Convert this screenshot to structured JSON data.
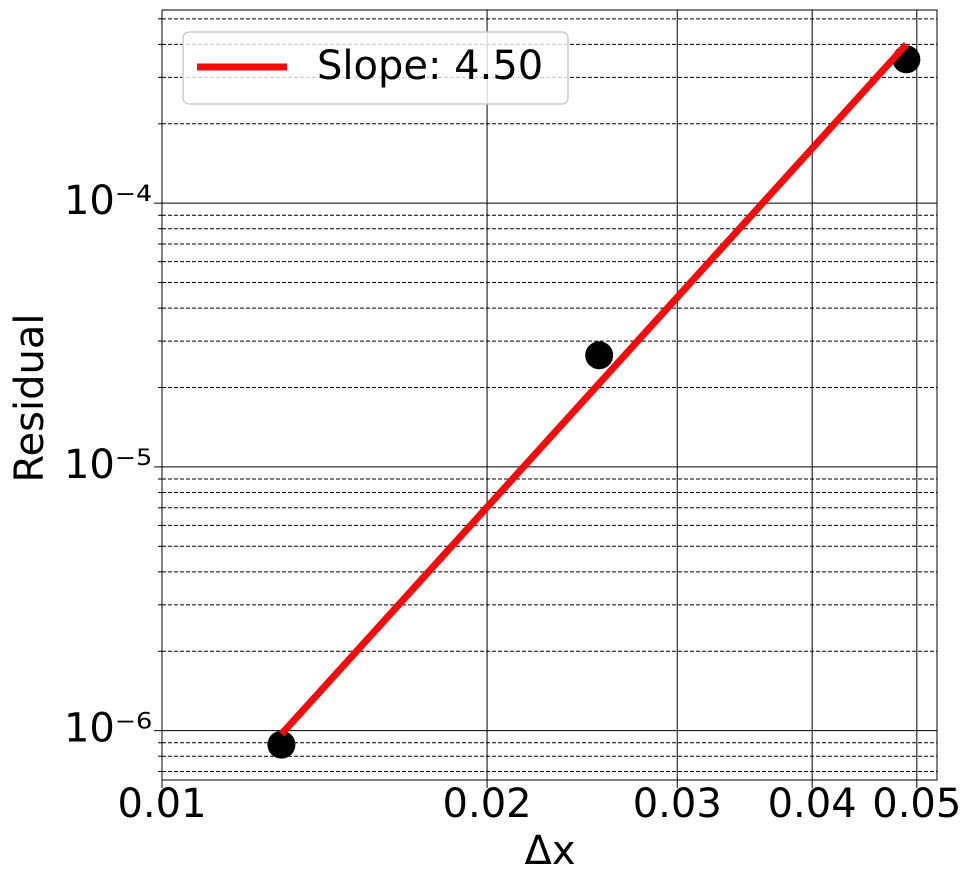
{
  "chart_data": {
    "type": "scatter",
    "x_label": "Δx",
    "y_label": "Residual",
    "xscale": "log",
    "yscale": "log",
    "grid": true,
    "legend": "upper left",
    "xlim": [
      0.01,
      0.0522
    ],
    "ylim": [
      6.5e-07,
      0.00054
    ],
    "xticks": [
      0.01,
      0.02,
      0.03,
      0.04,
      0.05
    ],
    "yticks": [
      {
        "value": 1e-06,
        "label": "10⁻⁶"
      },
      {
        "value": 1e-05,
        "label": "10⁻⁵"
      },
      {
        "value": 0.0001,
        "label": "10⁻⁴"
      }
    ],
    "yminorticks": [
      7e-07,
      8e-07,
      9e-07,
      2e-06,
      3e-06,
      4e-06,
      5e-06,
      6e-06,
      7e-06,
      8e-06,
      9e-06,
      2e-05,
      3e-05,
      4e-05,
      5e-05,
      6e-05,
      7e-05,
      8e-05,
      9e-05,
      0.0002,
      0.0003,
      0.0004,
      0.0005
    ],
    "series": [
      {
        "type": "scatter",
        "color": "#000000",
        "x": [
          0.0129,
          0.0254,
          0.0489
        ],
        "values": [
          8.85e-07,
          2.65e-05,
          0.000351
        ]
      },
      {
        "type": "line",
        "name": "Slope: 4.50",
        "color": "#f20c0c",
        "x": [
          0.0129,
          0.0489
        ],
        "values": [
          9.7e-07,
          0.0004
        ]
      }
    ]
  }
}
